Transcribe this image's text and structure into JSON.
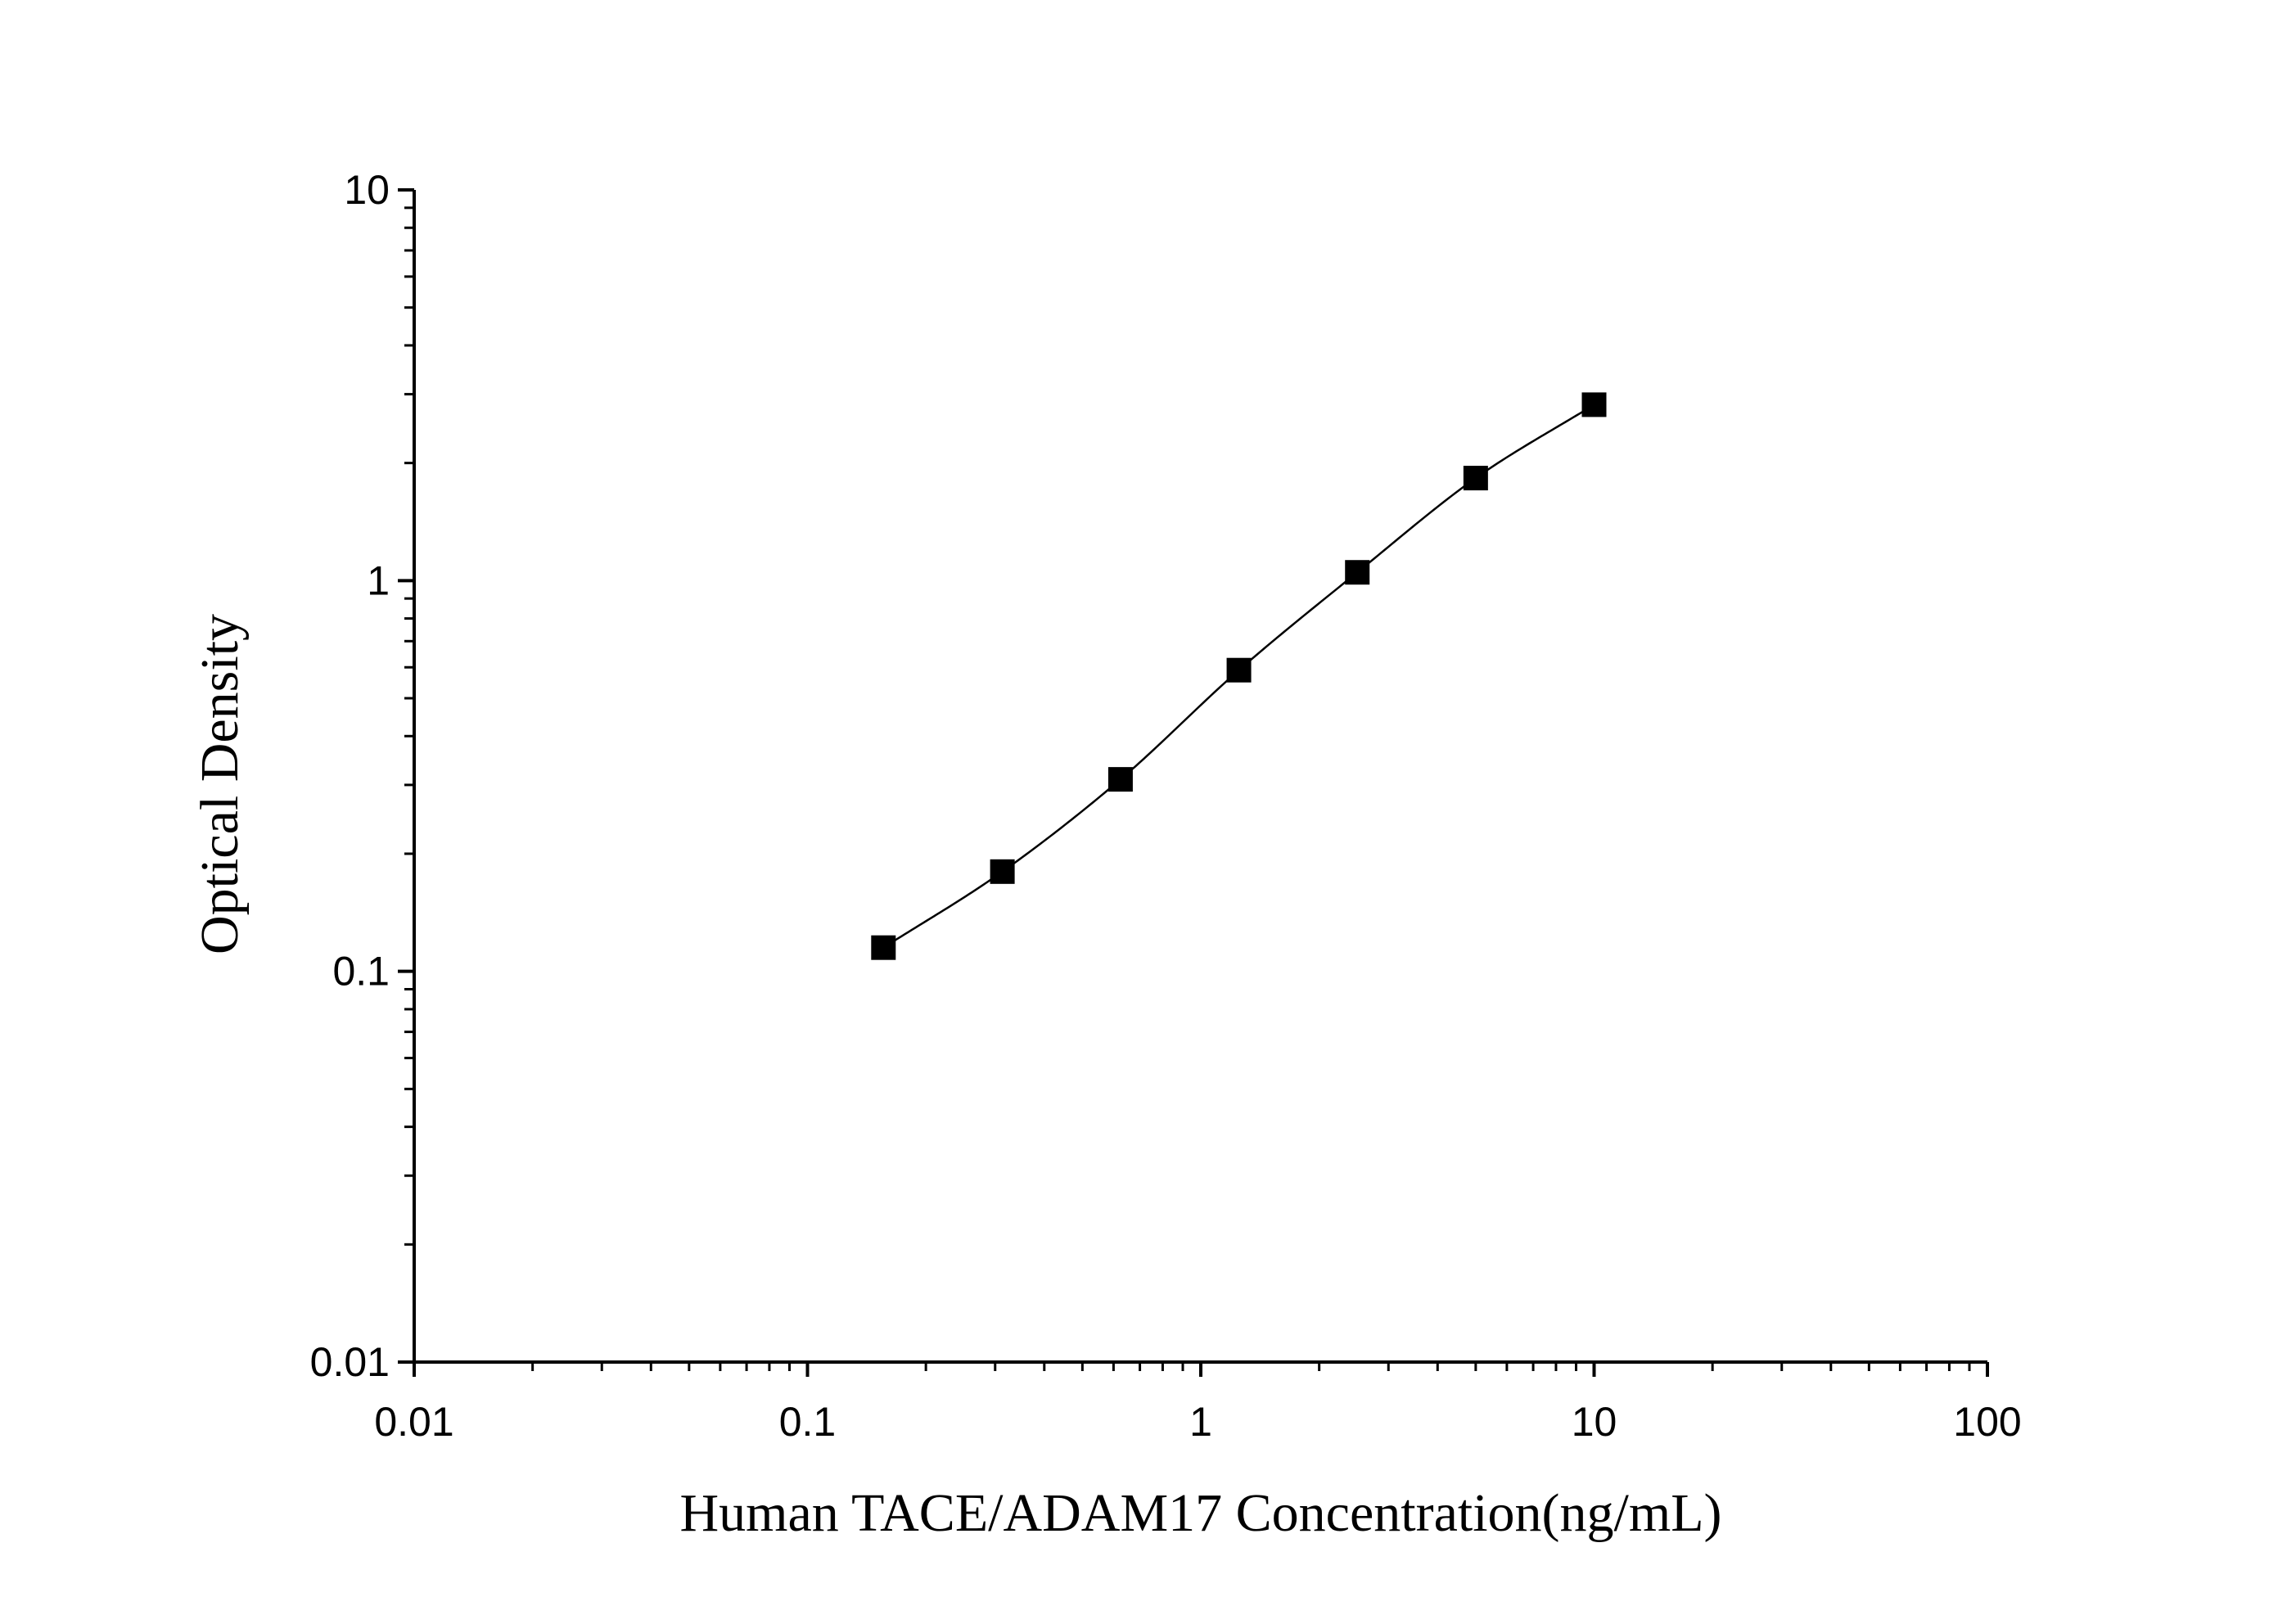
{
  "chart_data": {
    "type": "scatter",
    "x_scale": "log",
    "y_scale": "log",
    "xlabel": "Human TACE/ADAM17 Concentration(ng/mL)",
    "ylabel": "Optical Density",
    "xlim": [
      0.01,
      100
    ],
    "ylim": [
      0.01,
      10
    ],
    "x_ticks": [
      "0.01",
      "0.1",
      "1",
      "10",
      "100"
    ],
    "y_ticks": [
      "0.01",
      "0.1",
      "1",
      "10"
    ],
    "grid": false,
    "legend": "none",
    "series": [
      {
        "marker": "square",
        "color": "#000000",
        "points": [
          {
            "x": 0.156,
            "y": 0.115
          },
          {
            "x": 0.313,
            "y": 0.18
          },
          {
            "x": 0.625,
            "y": 0.31
          },
          {
            "x": 1.25,
            "y": 0.59
          },
          {
            "x": 2.5,
            "y": 1.05
          },
          {
            "x": 5,
            "y": 1.83
          },
          {
            "x": 10,
            "y": 2.82
          }
        ]
      }
    ],
    "fit_curve": {
      "style": "line",
      "color": "#000000",
      "x_range": [
        0.156,
        10
      ]
    }
  }
}
